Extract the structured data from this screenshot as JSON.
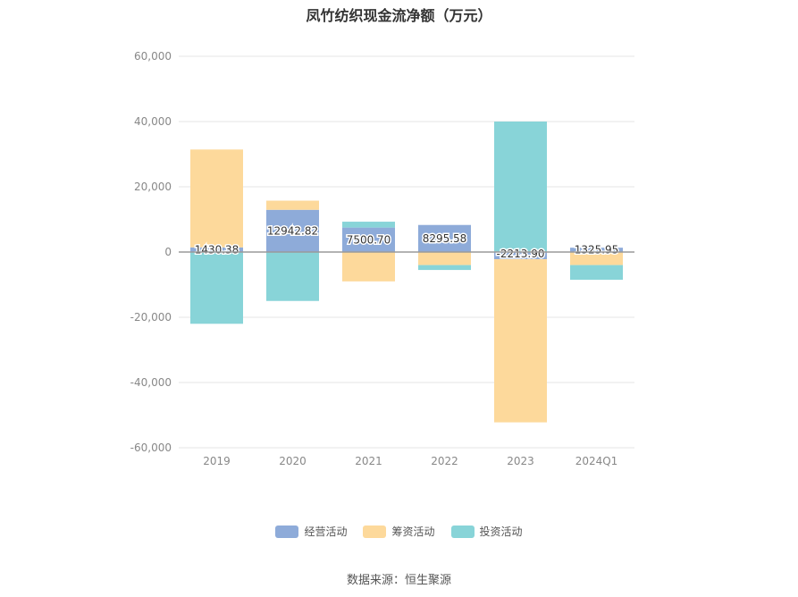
{
  "chart_data": {
    "type": "bar",
    "stacked": true,
    "title": "凤竹纺织现金流净额（万元）",
    "categories": [
      "2019",
      "2020",
      "2021",
      "2022",
      "2023",
      "2024Q1"
    ],
    "series": [
      {
        "name": "经营活动",
        "color": "#8eabd9",
        "values": [
          1430.38,
          12942.82,
          7500.7,
          8295.58,
          -2213.9,
          1325.95
        ]
      },
      {
        "name": "筹资活动",
        "color": "#fdd99b",
        "values": [
          30000,
          2800,
          -9000,
          -4000,
          -50000,
          -4000
        ]
      },
      {
        "name": "投资活动",
        "color": "#88d4d8",
        "values": [
          -22000,
          -15000,
          1800,
          -1500,
          40000,
          -4500
        ]
      }
    ],
    "data_labels": [
      "1430.38",
      "12942.82",
      "7500.70",
      "8295.58",
      "-2213.90",
      "1325.95"
    ],
    "ylim": [
      -60000,
      60000
    ],
    "yticks": [
      60000,
      40000,
      20000,
      0,
      -20000,
      -40000,
      -60000
    ],
    "ytick_labels": [
      "60,000",
      "40,000",
      "20,000",
      "0",
      "-20,000",
      "-40,000",
      "-60,000"
    ],
    "grid": true,
    "legend_position": "bottom"
  },
  "source_note": "数据来源：恒生聚源"
}
